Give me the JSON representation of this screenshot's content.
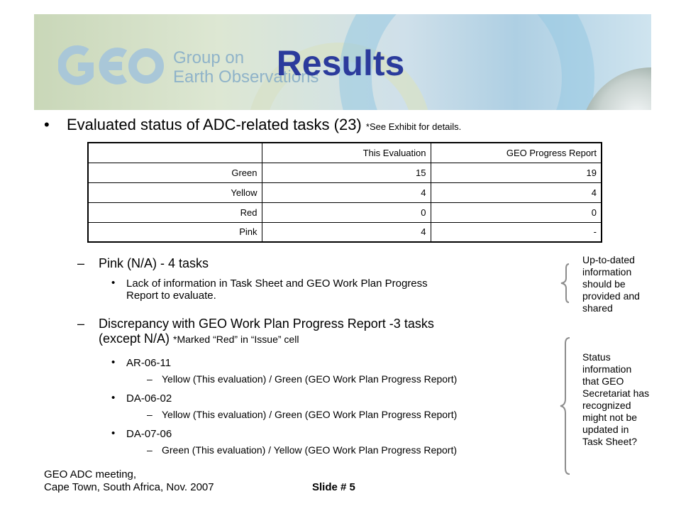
{
  "header": {
    "logo_text_line1": "Group on",
    "logo_text_line2": "Earth Observations",
    "title": "Results"
  },
  "intro": {
    "text": "Evaluated status of ADC-related tasks (23)",
    "note": "*See Exhibit for details."
  },
  "table": {
    "headers": [
      "",
      "This Evaluation",
      "GEO Progress Report"
    ],
    "rows": [
      [
        "Green",
        "15",
        "19"
      ],
      [
        "Yellow",
        "4",
        "4"
      ],
      [
        "Red",
        "0",
        "0"
      ],
      [
        "Pink",
        "4",
        "-"
      ]
    ]
  },
  "pink": {
    "dash": "–",
    "label": "Pink (N/A) - 4 tasks",
    "detail_line1": "Lack of information in Task Sheet and GEO Work Plan Progress",
    "detail_line2": "Report to evaluate."
  },
  "discrepancy": {
    "dash": "–",
    "line1": "Discrepancy with GEO Work Plan Progress Report -3 tasks",
    "line2": "(except N/A)",
    "note": "*Marked “Red” in “Issue” cell",
    "tasks": [
      {
        "id": "AR-06-11",
        "status": "Yellow (This evaluation) / Green (GEO Work Plan Progress Report)"
      },
      {
        "id": "DA-06-02",
        "status": "Yellow (This evaluation) / Green (GEO Work Plan Progress Report)"
      },
      {
        "id": "DA-07-06",
        "status": "Green (This evaluation) / Yellow (GEO Work Plan Progress Report)"
      }
    ]
  },
  "side_notes": {
    "note1": [
      "Up-to-dated",
      "information",
      "should be",
      "provided and",
      "shared"
    ],
    "note2": [
      "Status",
      "information",
      "that GEO",
      "Secretariat has",
      "recognized",
      "might not be",
      "updated in",
      "Task Sheet?"
    ]
  },
  "footer": {
    "line1": "GEO ADC meeting,",
    "line2": "Cape Town, South Africa, Nov. 2007",
    "slide": "Slide # 5"
  },
  "colors": {
    "title": "#2b3b9c",
    "logo": "#8fb3c9"
  }
}
